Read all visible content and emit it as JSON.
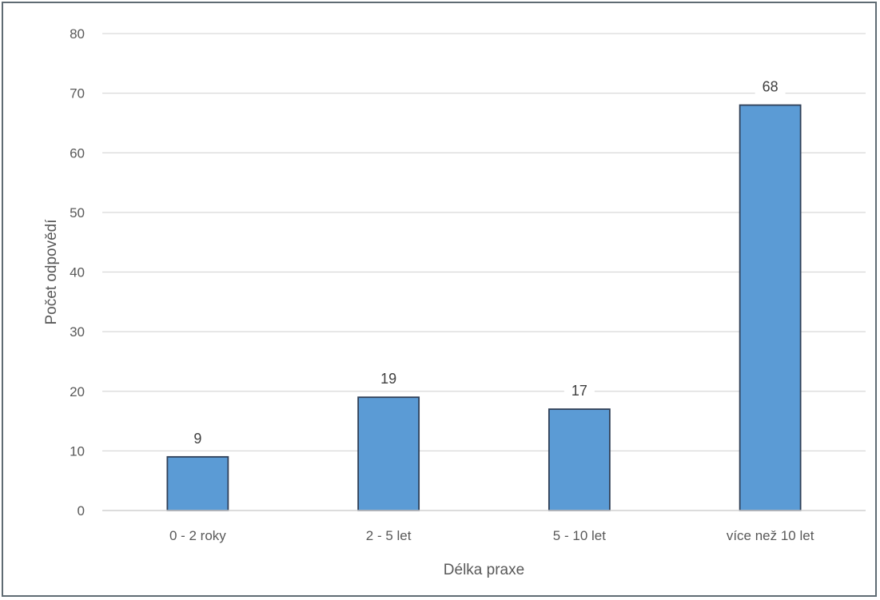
{
  "chart_data": {
    "type": "bar",
    "categories": [
      "0 - 2 roky",
      "2 - 5 let",
      "5 - 10 let",
      "více než 10 let"
    ],
    "values": [
      9,
      19,
      17,
      68
    ],
    "title": "",
    "xlabel": "Délka praxe",
    "ylabel": "Počet odpovědí",
    "ylim": [
      0,
      80
    ],
    "yticks": [
      0,
      10,
      20,
      30,
      40,
      50,
      60,
      70,
      80
    ],
    "grid": true,
    "legend": "none",
    "bar_color": "#5b9bd5",
    "bar_edge_color": "#2f3f57"
  }
}
